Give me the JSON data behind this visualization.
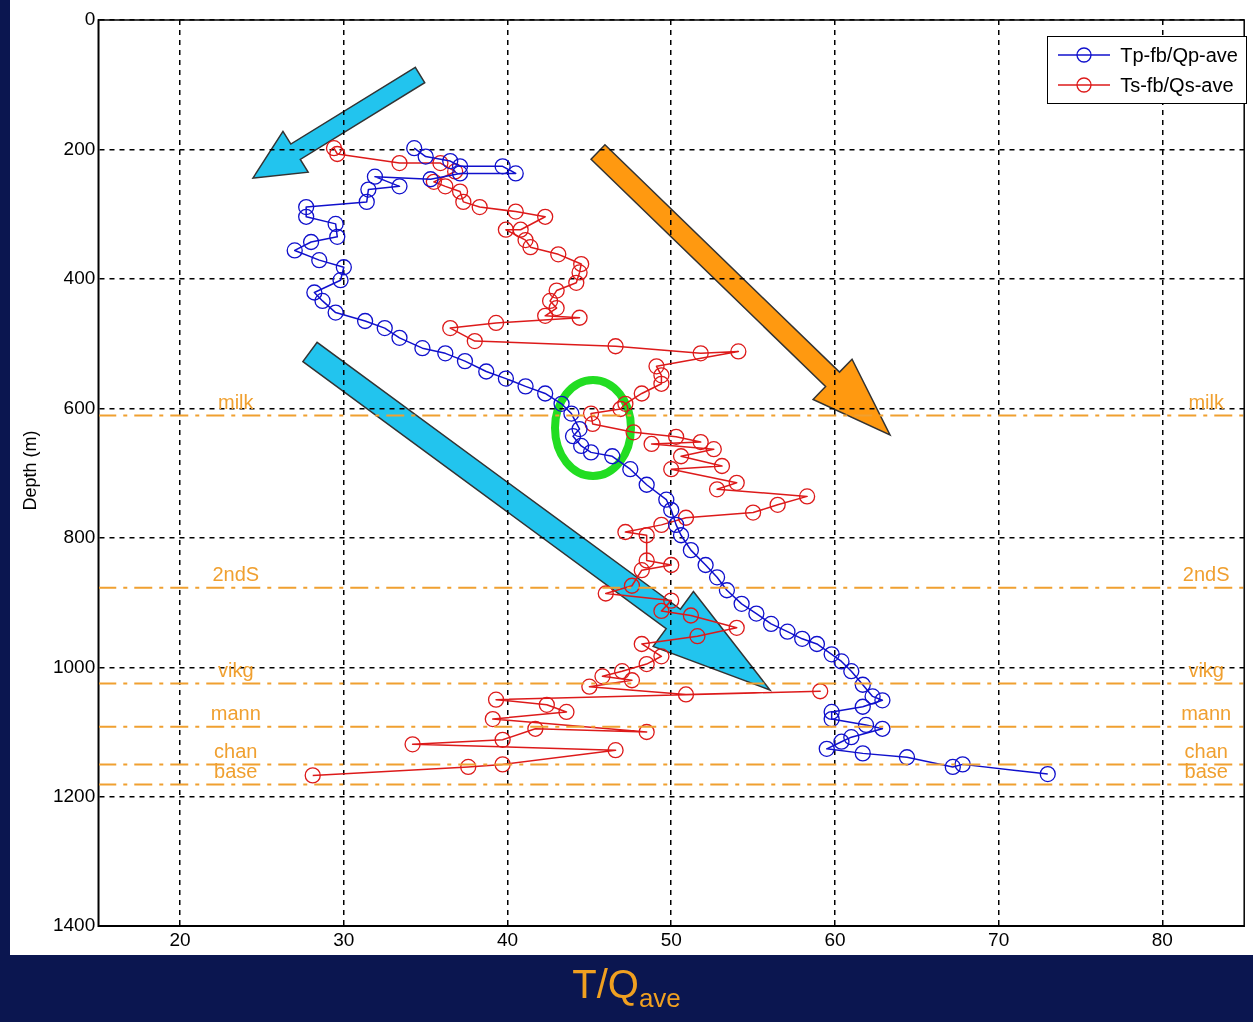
{
  "chart_data": {
    "type": "line",
    "xlabel": "T/Q$_{ave}$",
    "ylabel": "Depth (m)",
    "xlim": [
      15,
      85
    ],
    "ylim": [
      1400,
      0
    ],
    "xticks": [
      20,
      30,
      40,
      50,
      60,
      70,
      80
    ],
    "yticks": [
      0,
      200,
      400,
      600,
      800,
      1000,
      1200,
      1400
    ],
    "grid": true,
    "legend": "top right",
    "marker": "circle",
    "line_style": "solid",
    "series": [
      {
        "name": "Tp-fb/Qp-ave",
        "color": "#1010cc",
        "x": [
          34.3,
          35.0,
          36.5,
          37.1,
          39.7,
          40.5,
          37.1,
          35.3,
          31.9,
          33.4,
          31.5,
          31.4,
          27.7,
          27.7,
          29.5,
          29.6,
          28.0,
          27.0,
          28.5,
          30.0,
          29.8,
          28.2,
          28.7,
          29.5,
          31.3,
          32.5,
          33.4,
          34.8,
          36.2,
          37.4,
          38.7,
          39.9,
          41.1,
          42.3,
          43.3,
          43.9,
          44.4,
          44.0,
          44.5,
          45.1,
          46.4,
          47.5,
          48.5,
          49.7,
          50.0,
          50.3,
          50.6,
          51.2,
          52.1,
          52.8,
          53.4,
          54.3,
          55.2,
          56.1,
          57.1,
          58.0,
          58.9,
          59.8,
          60.4,
          61.0,
          61.7,
          62.3,
          62.9,
          61.7,
          59.8,
          59.8,
          61.9,
          62.9,
          61.0,
          60.4,
          59.5,
          61.7,
          64.4,
          67.2,
          67.8,
          73.0
        ],
        "values": [
          198,
          211,
          218,
          226,
          226,
          237,
          237,
          246,
          242,
          257,
          262,
          281,
          289,
          304,
          315,
          335,
          343,
          356,
          371,
          382,
          402,
          421,
          434,
          452,
          465,
          476,
          491,
          507,
          515,
          527,
          543,
          554,
          566,
          577,
          593,
          608,
          632,
          643,
          658,
          668,
          674,
          694,
          718,
          741,
          757,
          780,
          796,
          819,
          842,
          861,
          881,
          902,
          917,
          933,
          945,
          956,
          964,
          980,
          991,
          1006,
          1027,
          1045,
          1051,
          1061,
          1069,
          1080,
          1089,
          1095,
          1108,
          1115,
          1126,
          1133,
          1139,
          1154,
          1150,
          1165
        ]
      },
      {
        "name": "Ts-fb/Qs-ave",
        "color": "#dd1a1a",
        "x": [
          29.4,
          29.6,
          33.4,
          35.9,
          36.8,
          35.5,
          36.2,
          37.1,
          37.3,
          38.3,
          40.5,
          42.3,
          40.8,
          39.9,
          41.1,
          41.4,
          43.1,
          44.5,
          44.4,
          44.2,
          43.0,
          42.6,
          43.0,
          42.3,
          44.4,
          39.3,
          36.5,
          38.0,
          46.6,
          51.8,
          54.1,
          49.1,
          49.4,
          49.4,
          48.2,
          47.2,
          46.9,
          45.1,
          45.2,
          47.7,
          50.3,
          51.8,
          48.8,
          52.6,
          50.6,
          53.1,
          50.0,
          54.0,
          52.8,
          58.3,
          56.5,
          55.0,
          50.9,
          49.4,
          47.2,
          48.5,
          48.5,
          50.0,
          48.2,
          47.6,
          46.0,
          50.0,
          49.4,
          51.2,
          54.0,
          51.6,
          48.2,
          49.4,
          48.5,
          47.0,
          45.8,
          47.6,
          45.0,
          50.9,
          59.1,
          39.3,
          42.4,
          43.6,
          39.1,
          48.5,
          41.7,
          39.7,
          34.2,
          46.6,
          39.7,
          37.6,
          28.1
        ],
        "values": [
          198,
          207,
          221,
          221,
          234,
          250,
          257,
          265,
          281,
          289,
          296,
          304,
          324,
          324,
          340,
          351,
          362,
          377,
          390,
          406,
          418,
          434,
          445,
          457,
          460,
          468,
          476,
          496,
          504,
          515,
          512,
          535,
          549,
          562,
          577,
          593,
          601,
          608,
          624,
          637,
          644,
          652,
          655,
          663,
          674,
          689,
          694,
          715,
          725,
          736,
          749,
          761,
          769,
          780,
          791,
          796,
          835,
          842,
          850,
          874,
          886,
          897,
          913,
          920,
          939,
          952,
          964,
          983,
          995,
          1006,
          1014,
          1020,
          1030,
          1042,
          1037,
          1050,
          1058,
          1069,
          1080,
          1100,
          1095,
          1112,
          1119,
          1128,
          1150,
          1154,
          1167
        ]
      }
    ],
    "ref_lines": [
      {
        "axis": "y",
        "value": 611,
        "label": "milk",
        "color": "#f0a030",
        "line_style": "dashed"
      },
      {
        "axis": "y",
        "value": 877,
        "label": "2ndS",
        "color": "#f0a030",
        "line_style": "dashed"
      },
      {
        "axis": "y",
        "value": 1025,
        "label": "vikg",
        "color": "#f0a030",
        "line_style": "dashed"
      },
      {
        "axis": "y",
        "value": 1092,
        "label": "mann",
        "color": "#f0a030",
        "line_style": "dashed"
      },
      {
        "axis": "y",
        "value": 1150,
        "label": "chan",
        "color": "#f0a030",
        "line_style": "dashed"
      },
      {
        "axis": "y",
        "value": 1181,
        "label": "base",
        "color": "#f0a030",
        "line_style": "dashed"
      }
    ]
  }
}
